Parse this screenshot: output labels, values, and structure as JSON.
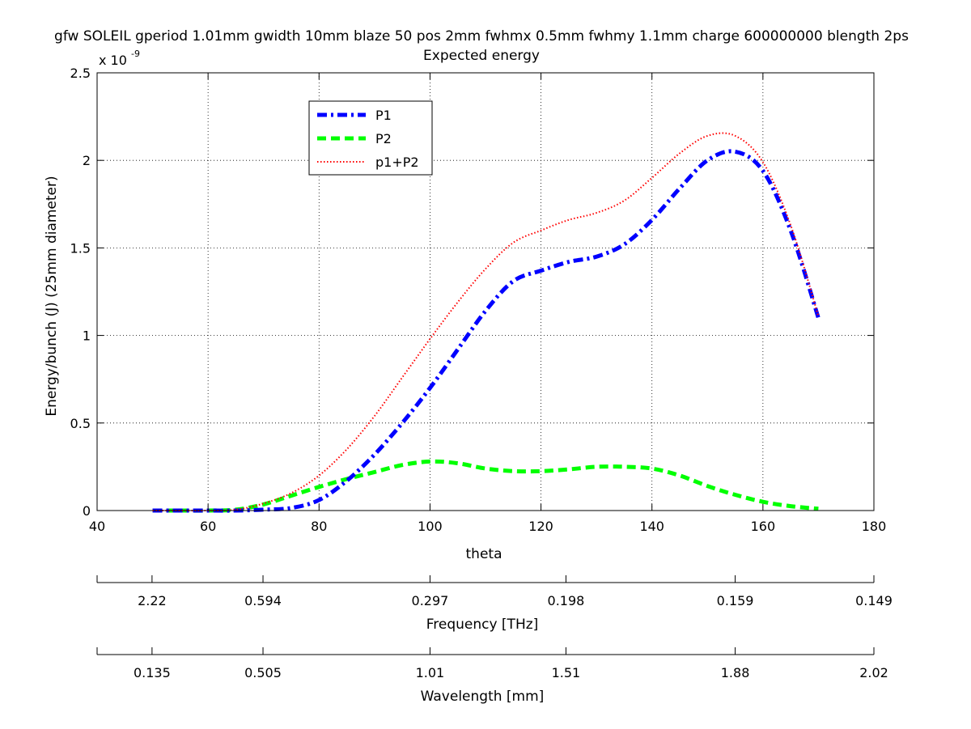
{
  "chart_data": {
    "type": "line",
    "title": "gfw SOLEIL gperiod 1.01mm gwidth 10mm blaze 50 pos 2mm fwhmx 0.5mm fwhmy 1.1mm charge 600000000 blength 2ps",
    "subtitle": "Expected energy",
    "xlabel": "theta",
    "ylabel": "Energy/bunch (J) (25mm diameter)",
    "y_exponent_label": "x 10",
    "y_exponent_power": "-9",
    "xlim": [
      40,
      180
    ],
    "ylim": [
      0,
      2.5
    ],
    "x_ticks": [
      "40",
      "60",
      "80",
      "100",
      "120",
      "140",
      "160",
      "180"
    ],
    "x_tick_values": [
      40,
      60,
      80,
      100,
      120,
      140,
      160,
      180
    ],
    "y_ticks": [
      "0",
      "0.5",
      "1",
      "1.5",
      "2",
      "2.5"
    ],
    "y_tick_values": [
      0,
      0.5,
      1,
      1.5,
      2,
      2.5
    ],
    "grid": true,
    "legend_position": "top-left",
    "series": [
      {
        "name": "P1",
        "color": "#0000ff",
        "style": "dashdot",
        "x": [
          50,
          55,
          60,
          65,
          70,
          75,
          80,
          85,
          90,
          95,
          100,
          105,
          110,
          115,
          120,
          125,
          130,
          135,
          140,
          145,
          150,
          155,
          160,
          165,
          170
        ],
        "y": [
          0,
          0,
          0,
          0,
          0.005,
          0.015,
          0.06,
          0.17,
          0.32,
          0.5,
          0.7,
          0.92,
          1.14,
          1.31,
          1.37,
          1.42,
          1.45,
          1.52,
          1.66,
          1.84,
          2.0,
          2.05,
          1.94,
          1.6,
          1.1
        ]
      },
      {
        "name": "P2",
        "color": "#00ff00",
        "style": "dashed",
        "x": [
          50,
          55,
          60,
          65,
          70,
          75,
          80,
          85,
          90,
          95,
          100,
          105,
          110,
          115,
          120,
          125,
          130,
          135,
          140,
          145,
          150,
          155,
          160,
          165,
          170
        ],
        "y": [
          0,
          0,
          0,
          0.005,
          0.035,
          0.085,
          0.135,
          0.18,
          0.22,
          0.26,
          0.28,
          0.27,
          0.24,
          0.225,
          0.225,
          0.235,
          0.25,
          0.25,
          0.24,
          0.2,
          0.14,
          0.09,
          0.05,
          0.025,
          0.01
        ]
      },
      {
        "name": "p1+P2",
        "color": "#ff0000",
        "style": "dotted",
        "x": [
          50,
          55,
          60,
          65,
          70,
          75,
          80,
          85,
          90,
          95,
          100,
          105,
          110,
          115,
          120,
          125,
          130,
          135,
          140,
          145,
          150,
          155,
          160,
          165,
          170
        ],
        "y": [
          0,
          0,
          0,
          0.005,
          0.04,
          0.1,
          0.2,
          0.35,
          0.54,
          0.76,
          0.98,
          1.19,
          1.38,
          1.53,
          1.6,
          1.66,
          1.7,
          1.77,
          1.9,
          2.04,
          2.14,
          2.14,
          1.99,
          1.63,
          1.11
        ]
      }
    ],
    "secondary_axes": [
      {
        "label": "Frequency [THz]",
        "tick_labels": [
          "2.22",
          "0.594",
          "0.297",
          "0.198",
          "0.159",
          "0.149"
        ],
        "tick_theta": [
          49.9,
          69.9,
          100,
          124.5,
          155,
          180
        ]
      },
      {
        "label": "Wavelength [mm]",
        "tick_labels": [
          "0.135",
          "0.505",
          "1.01",
          "1.51",
          "1.88",
          "2.02"
        ],
        "tick_theta": [
          49.9,
          69.9,
          100,
          124.5,
          155,
          180
        ]
      }
    ]
  }
}
